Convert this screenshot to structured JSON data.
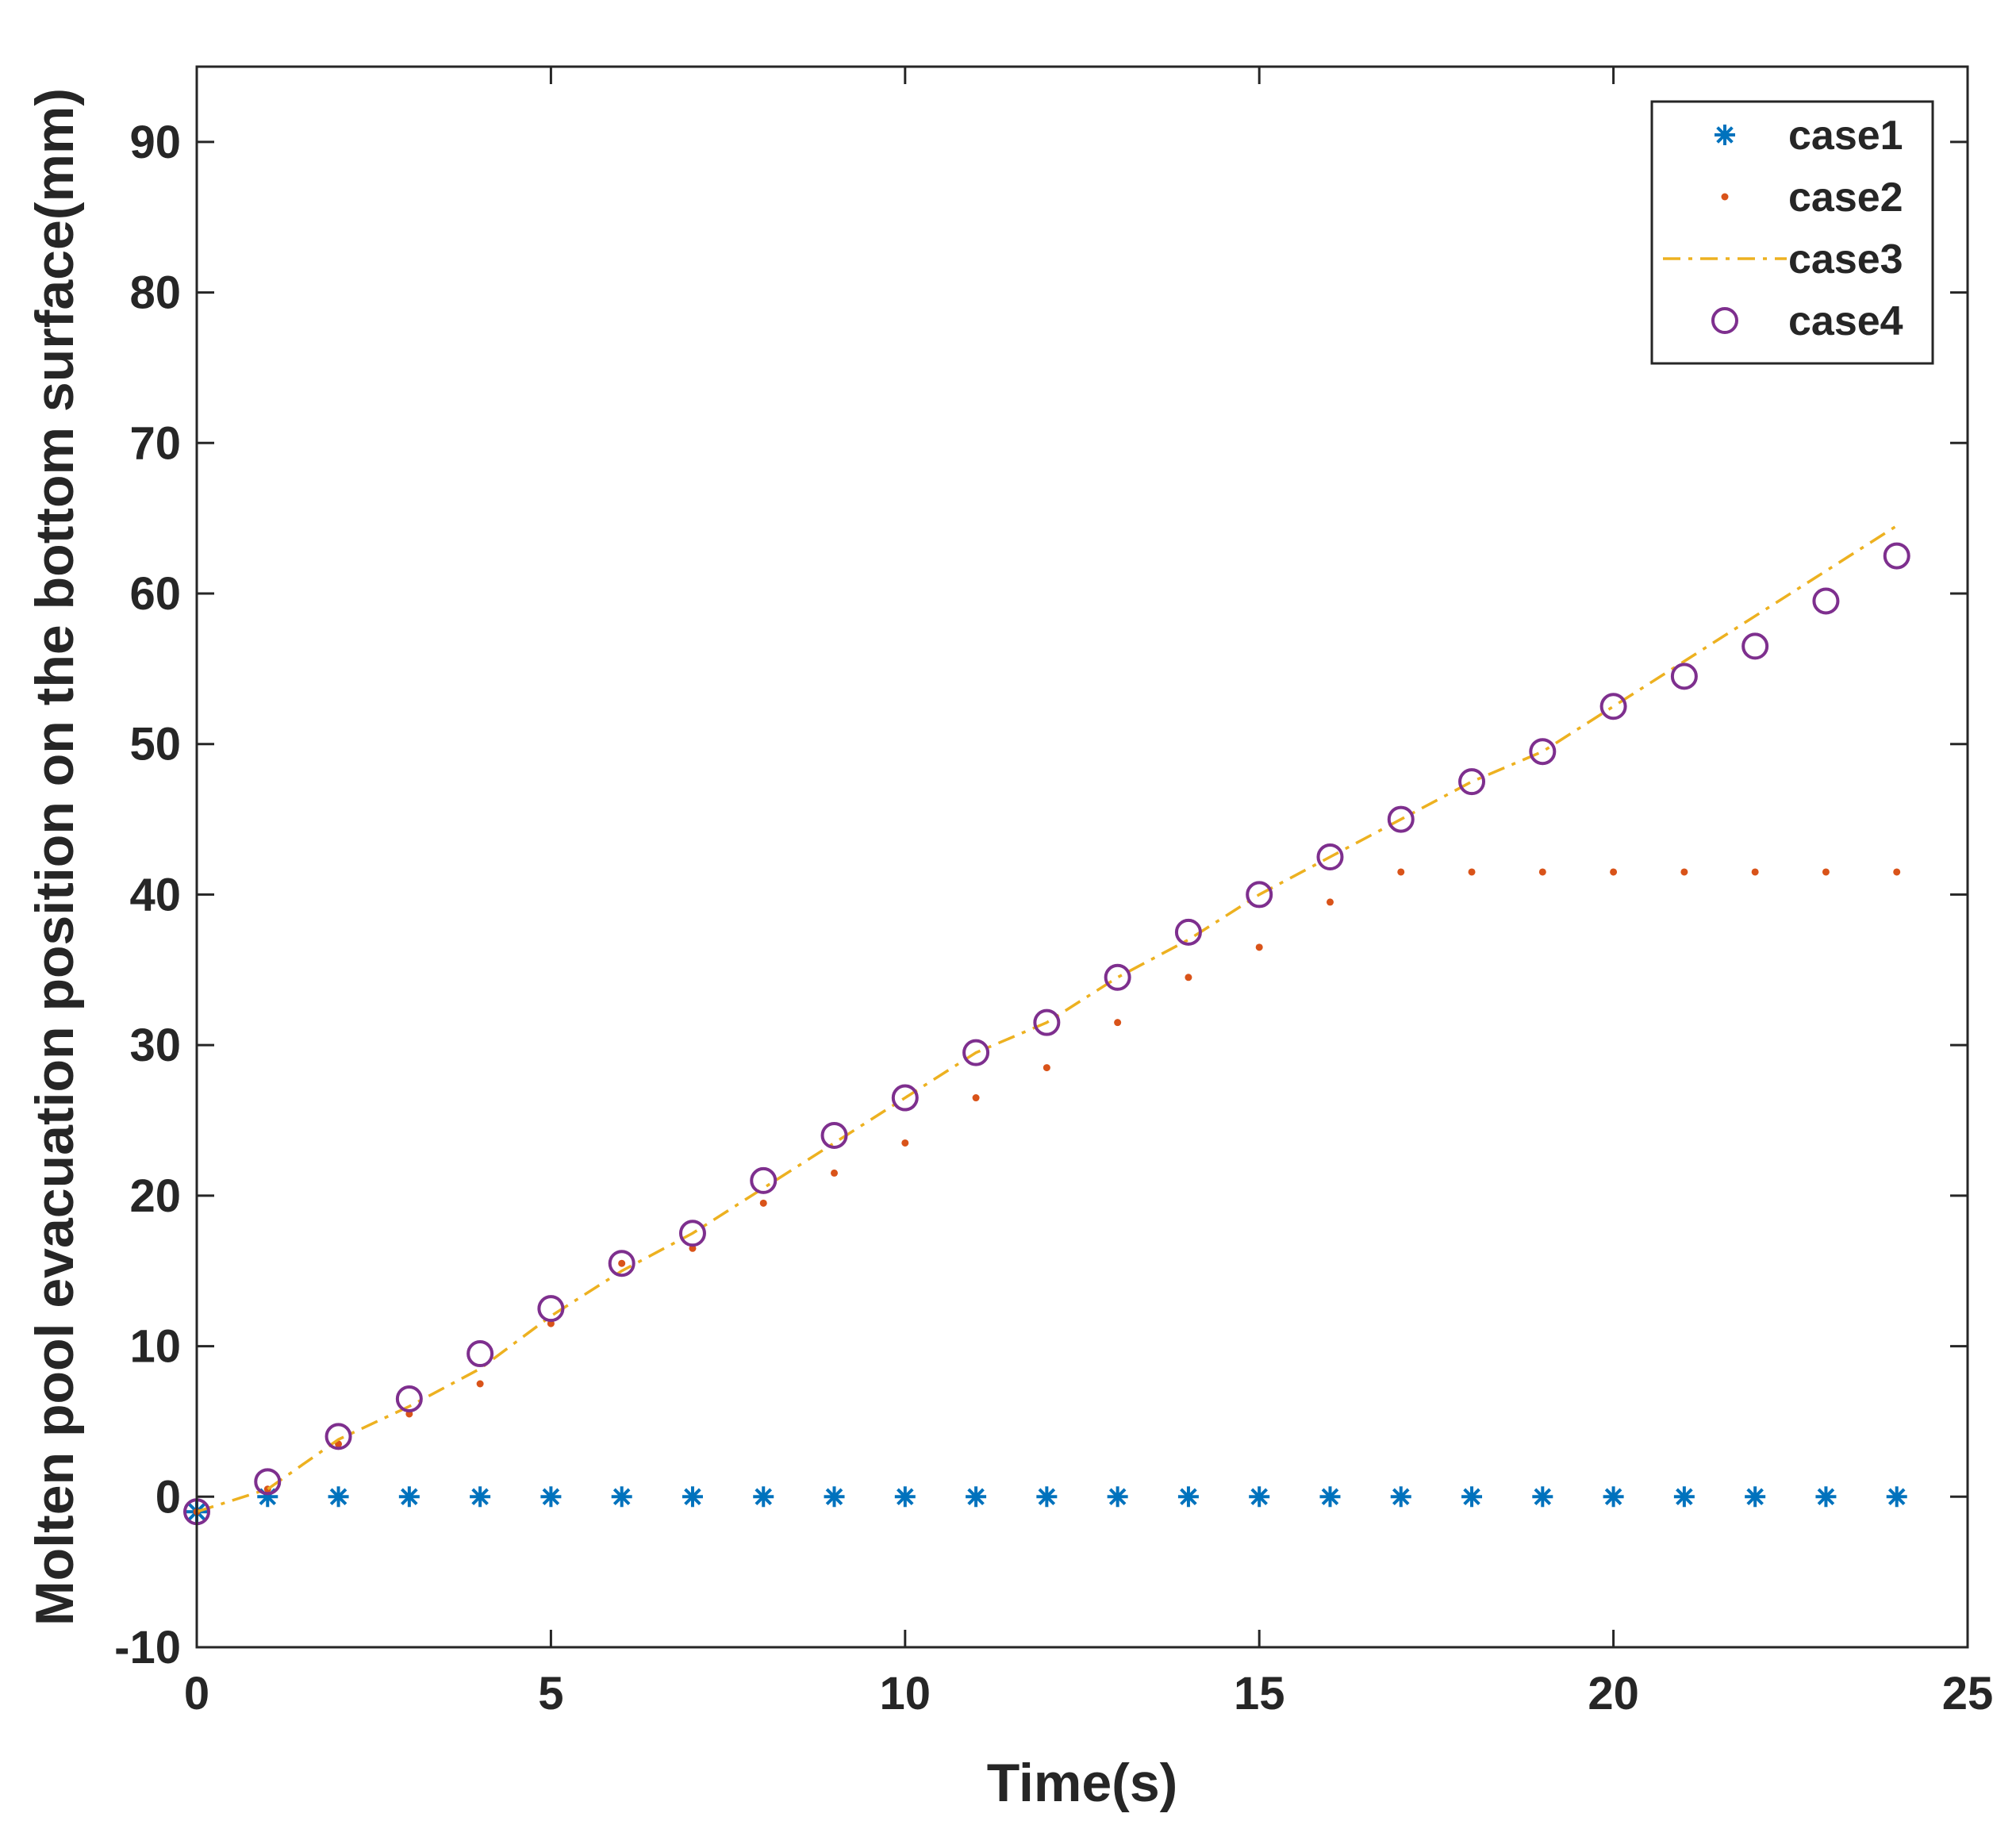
{
  "chart_data": {
    "type": "scatter",
    "title": "",
    "xlabel": "Time(s)",
    "ylabel": "Molten pool evacuation position on the bottom surface(mm)",
    "xlim": [
      0,
      25
    ],
    "ylim": [
      -10,
      95
    ],
    "xticks": [
      0,
      5,
      10,
      15,
      20,
      25
    ],
    "yticks": [
      -10,
      0,
      10,
      20,
      30,
      40,
      50,
      60,
      70,
      80,
      90
    ],
    "grid": false,
    "legend_position": "top-right",
    "series": [
      {
        "name": "case1",
        "marker": "asterisk",
        "color": "#0072BD",
        "x": [
          0,
          1,
          2,
          3,
          4,
          5,
          6,
          7,
          8,
          9,
          10,
          11,
          12,
          13,
          14,
          15,
          16,
          17,
          18,
          19,
          20,
          21,
          22,
          23,
          24
        ],
        "y": [
          -1,
          0,
          0,
          0,
          0,
          0,
          0,
          0,
          0,
          0,
          0,
          0,
          0,
          0,
          0,
          0,
          0,
          0,
          0,
          0,
          0,
          0,
          0,
          0,
          0
        ]
      },
      {
        "name": "case2",
        "marker": "dot",
        "color": "#D95319",
        "x": [
          0,
          1,
          2,
          3,
          4,
          5,
          6,
          7,
          8,
          9,
          10,
          11,
          12,
          13,
          14,
          15,
          16,
          17,
          18,
          19,
          20,
          21,
          22,
          23,
          24
        ],
        "y": [
          -1,
          0.5,
          3.5,
          5.5,
          7.5,
          11.5,
          15.5,
          16.5,
          19.5,
          21.5,
          23.5,
          26.5,
          28.5,
          31.5,
          34.5,
          36.5,
          39.5,
          41.5,
          41.5,
          41.5,
          41.5,
          41.5,
          41.5,
          41.5,
          41.5
        ]
      },
      {
        "name": "case3",
        "marker": "dash-dot line",
        "color": "#EDB120",
        "x": [
          0,
          1,
          2,
          3,
          4,
          5,
          6,
          7,
          8,
          9,
          10,
          11,
          12,
          13,
          14,
          15,
          16,
          17,
          18,
          19,
          20,
          21,
          22,
          23,
          24
        ],
        "y": [
          -1,
          0.5,
          3.8,
          6,
          8.5,
          12,
          15,
          17.5,
          20.5,
          23.5,
          26.5,
          29.5,
          31.5,
          34.5,
          37,
          40,
          42.5,
          45,
          47.5,
          49.5,
          52.5,
          55.5,
          58.5,
          61.5,
          64.5
        ]
      },
      {
        "name": "case4",
        "marker": "circle",
        "color": "#7E2F8E",
        "x": [
          0,
          1,
          2,
          3,
          4,
          5,
          6,
          7,
          8,
          9,
          10,
          11,
          12,
          13,
          14,
          15,
          16,
          17,
          18,
          19,
          20,
          21,
          22,
          23,
          24
        ],
        "y": [
          -1,
          1,
          4,
          6.5,
          9.5,
          12.5,
          15.5,
          17.5,
          21,
          24,
          26.5,
          29.5,
          31.5,
          34.5,
          37.5,
          40,
          42.5,
          45,
          47.5,
          49.5,
          52.5,
          54.5,
          56.5,
          59.5,
          62.5
        ]
      }
    ]
  }
}
